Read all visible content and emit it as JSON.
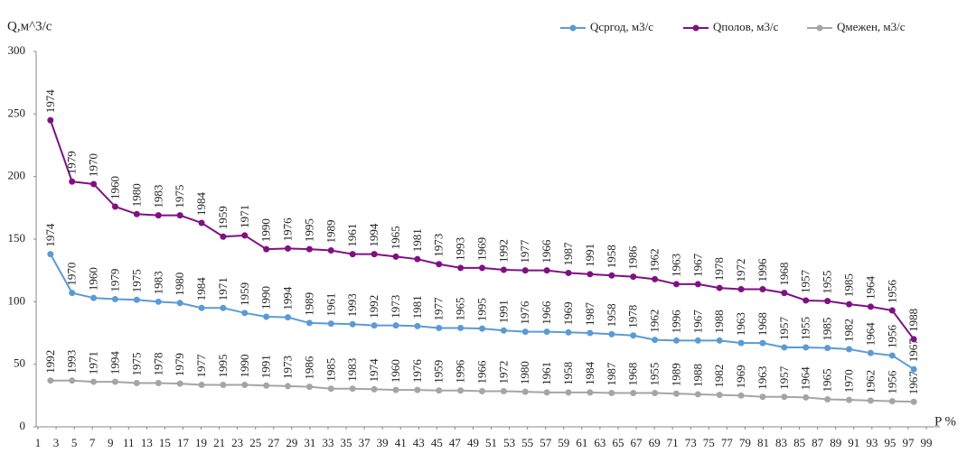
{
  "chart_data": {
    "type": "line",
    "ylabel": "Q,м^3/с",
    "xlabel": "P %",
    "xlim": [
      1,
      99
    ],
    "ylim": [
      0,
      300
    ],
    "xticks": [
      1,
      3,
      5,
      7,
      9,
      11,
      13,
      15,
      17,
      19,
      21,
      23,
      25,
      27,
      29,
      31,
      33,
      35,
      37,
      39,
      41,
      43,
      45,
      47,
      49,
      51,
      53,
      55,
      57,
      59,
      61,
      63,
      65,
      67,
      69,
      71,
      73,
      75,
      77,
      79,
      81,
      83,
      85,
      87,
      89,
      91,
      93,
      95,
      97,
      99
    ],
    "yticks": [
      0,
      50,
      100,
      150,
      200,
      250,
      300
    ],
    "grid": false,
    "legend": "top-right",
    "x": [
      2.38,
      4.76,
      7.14,
      9.52,
      11.9,
      14.29,
      16.67,
      19.05,
      21.43,
      23.81,
      26.19,
      28.57,
      30.95,
      33.33,
      35.71,
      38.1,
      40.48,
      42.86,
      45.24,
      47.62,
      50,
      52.38,
      54.76,
      57.14,
      59.52,
      61.9,
      64.29,
      66.67,
      69.05,
      71.43,
      73.81,
      76.19,
      78.57,
      80.95,
      83.33,
      85.71,
      88.1,
      90.48,
      92.86,
      95.24,
      97.62
    ],
    "series": [
      {
        "name": "Qсргод, м3/с",
        "color": "#5b9bd5",
        "values": [
          138,
          107,
          103,
          102,
          101.5,
          100,
          99,
          95,
          95,
          91,
          88,
          87.5,
          83,
          82.5,
          82,
          81,
          81,
          80.5,
          79,
          79,
          78.5,
          77,
          76,
          76,
          75.5,
          75,
          74,
          73,
          69.5,
          69,
          69,
          69,
          67,
          67,
          63.5,
          63.5,
          63,
          62,
          59,
          57,
          46
        ],
        "labels": [
          "1974",
          "1970",
          "1960",
          "1979",
          "1975",
          "1983",
          "1980",
          "1984",
          "1971",
          "1959",
          "1990",
          "1994",
          "1989",
          "1961",
          "1993",
          "1992",
          "1973",
          "1981",
          "1977",
          "1965",
          "1995",
          "1991",
          "1976",
          "1966",
          "1969",
          "1987",
          "1958",
          "1978",
          "1962",
          "1996",
          "1967",
          "1988",
          "1963",
          "1968",
          "1957",
          "1955",
          "1985",
          "1982",
          "1964",
          "1956",
          "1967"
        ]
      },
      {
        "name": "Qполов, м3/с",
        "color": "#7f1083",
        "values": [
          245,
          196,
          194,
          176,
          170,
          169,
          169,
          163,
          152,
          153,
          142,
          142.5,
          142,
          141,
          138,
          138,
          136,
          134,
          130,
          127,
          127,
          125.5,
          125,
          125,
          123,
          122,
          121,
          120,
          118,
          114,
          114,
          111,
          110,
          110,
          107,
          101,
          100.5,
          98,
          96,
          93,
          70
        ],
        "labels": [
          "1974",
          "1979",
          "1970",
          "1960",
          "1980",
          "1983",
          "1975",
          "1984",
          "1959",
          "1971",
          "1990",
          "1976",
          "1995",
          "1989",
          "1961",
          "1994",
          "1965",
          "1981",
          "1973",
          "1993",
          "1969",
          "1992",
          "1977",
          "1966",
          "1987",
          "1991",
          "1958",
          "1986",
          "1962",
          "1963",
          "1967",
          "1978",
          "1972",
          "1996",
          "1968",
          "1957",
          "1955",
          "1985",
          "1964",
          "1956",
          "1988"
        ]
      },
      {
        "name": "Qмежен, м3/с",
        "color": "#a5a5a5",
        "values": [
          37,
          37,
          36,
          36,
          35,
          35,
          34.5,
          33.5,
          33.5,
          33.5,
          33,
          32.5,
          32,
          30.5,
          30.5,
          30,
          29.5,
          29.5,
          29,
          29,
          28.5,
          28.5,
          28,
          27.5,
          27.5,
          27.5,
          27,
          27,
          27,
          26.5,
          26,
          25.5,
          25,
          24,
          24,
          23.5,
          22,
          21.5,
          21,
          20.5,
          20
        ],
        "labels": [
          "1992",
          "1993",
          "1971",
          "1994",
          "1975",
          "1978",
          "1979",
          "1977",
          "1995",
          "1990",
          "1991",
          "1973",
          "1986",
          "1985",
          "1983",
          "1974",
          "1960",
          "1976",
          "1959",
          "1996",
          "1966",
          "1972",
          "1980",
          "1961",
          "1958",
          "1984",
          "1987",
          "1968",
          "1955",
          "1989",
          "1988",
          "1982",
          "1969",
          "1963",
          "1957",
          "1964",
          "1965",
          "1970",
          "1962",
          "1956",
          "1967"
        ]
      }
    ]
  }
}
